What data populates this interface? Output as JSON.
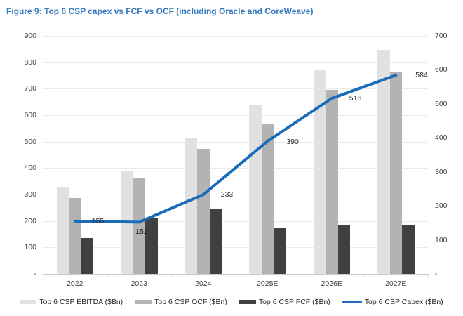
{
  "figure_title": "Figure 9: Top 6 CSP capex vs FCF vs OCF (including Oracle and CoreWeave)",
  "colors": {
    "title_blue": "#3579bd",
    "capex_line_blue": "#1a6cb8",
    "ebitda_gray": "#e1e1e1",
    "ocf_gray": "#b3b3b3",
    "fcf_dark_gray": "#3f4040",
    "gridline": "#ebebeb",
    "axis_text": "#3f3f3f"
  },
  "chart_data": {
    "type": "bar",
    "subtype": "grouped bars with secondary-axis line overlay",
    "categories": [
      "2022",
      "2023",
      "2024",
      "2025E",
      "2026E",
      "2027E"
    ],
    "series": [
      {
        "name": "Top 6 CSP EBITDA ($Bn)",
        "kind": "bar",
        "axis": "left",
        "color": "#e1e1e1",
        "values": [
          330,
          390,
          513,
          636,
          770,
          848
        ]
      },
      {
        "name": "Top 6 CSP OCF ($Bn)",
        "kind": "bar",
        "axis": "left",
        "color": "#b3b3b3",
        "values": [
          287,
          365,
          473,
          567,
          696,
          765
        ]
      },
      {
        "name": "Top 6 CSP FCF ($Bn)",
        "kind": "bar",
        "axis": "left",
        "color": "#3f4040",
        "values": [
          135,
          210,
          243,
          174,
          184,
          184
        ]
      },
      {
        "name": "Top 6 CSP Capex ($Bn)",
        "kind": "line",
        "axis": "right",
        "color": "#1a6cb8",
        "values": [
          155,
          152,
          233,
          390,
          516,
          584
        ],
        "data_labels": [
          "155",
          "152",
          "233",
          "390",
          "516",
          "584"
        ]
      }
    ],
    "left_axis": {
      "min": 0,
      "max": 900,
      "tick_labels": [
        "900",
        "800",
        "700",
        "600",
        "500",
        "400",
        "300",
        "200",
        "100",
        "-"
      ]
    },
    "right_axis": {
      "min": 0,
      "max": 700,
      "tick_labels": [
        "700",
        "600",
        "500",
        "400",
        "300",
        "200",
        "100",
        "-"
      ]
    },
    "grid": true,
    "legend_position": "bottom"
  }
}
